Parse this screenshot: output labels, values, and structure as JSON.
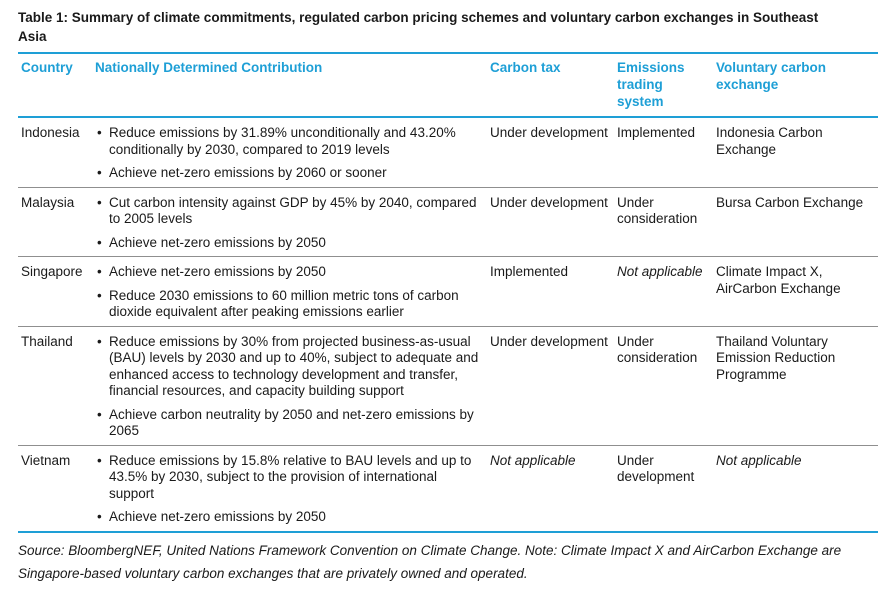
{
  "title": "Table 1: Summary of climate commitments, regulated carbon pricing schemes and voluntary carbon exchanges in Southeast Asia",
  "headers": {
    "country": "Country",
    "ndc": "Nationally Determined Contribution",
    "carbon_tax": "Carbon tax",
    "ets": "Emissions trading system",
    "voluntary": "Voluntary carbon exchange"
  },
  "bullet_glyph": "•",
  "rows": [
    {
      "country": "Indonesia",
      "ndc": [
        "Reduce emissions by 31.89% unconditionally and 43.20% conditionally by 2030, compared to 2019 levels",
        "Achieve net-zero emissions by 2060 or sooner"
      ],
      "carbon_tax": "Under development",
      "ets": "Implemented",
      "voluntary": "Indonesia Carbon Exchange"
    },
    {
      "country": "Malaysia",
      "ndc": [
        "Cut carbon intensity against GDP by 45% by 2040, compared to 2005 levels",
        "Achieve net-zero emissions by 2050"
      ],
      "carbon_tax": "Under development",
      "ets": "Under consideration",
      "voluntary": "Bursa Carbon Exchange"
    },
    {
      "country": "Singapore",
      "ndc": [
        "Achieve net-zero emissions by 2050",
        "Reduce 2030 emissions to 60 million metric tons of carbon dioxide equivalent after peaking emissions earlier"
      ],
      "carbon_tax": "Implemented",
      "ets": "Not applicable",
      "voluntary": "Climate Impact X, AirCarbon Exchange"
    },
    {
      "country": "Thailand",
      "ndc": [
        "Reduce emissions by 30% from projected business-as-usual (BAU) levels by 2030 and up to 40%, subject to adequate and enhanced access to technology development and transfer, financial resources, and capacity building support",
        "Achieve carbon neutrality by 2050 and net-zero emissions by 2065"
      ],
      "carbon_tax": "Under development",
      "ets": "Under consideration",
      "voluntary": "Thailand Voluntary Emission Reduction Programme"
    },
    {
      "country": "Vietnam",
      "ndc": [
        "Reduce emissions by 15.8% relative to BAU levels and up to 43.5% by 2030, subject to the provision of international support",
        "Achieve net-zero emissions by 2050"
      ],
      "carbon_tax": "Not applicable",
      "ets": "Under development",
      "voluntary": "Not applicable"
    }
  ],
  "source_note": "Source: BloombergNEF, United Nations Framework Convention on Climate Change. Note: Climate Impact X and AirCarbon Exchange are Singapore-based voluntary carbon exchanges that are privately owned and operated.",
  "colors": {
    "header_text": "#1e9fd6",
    "rule": "#1e9fd6",
    "row_divider": "#8f8f8f",
    "body_text": "#1a1a1a"
  }
}
